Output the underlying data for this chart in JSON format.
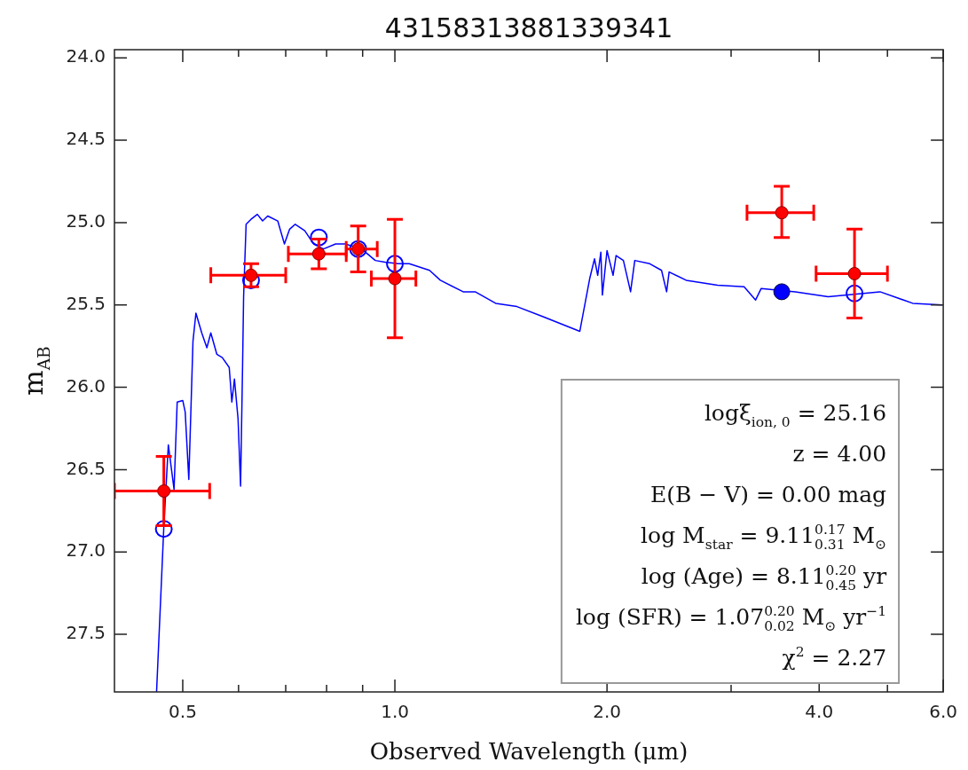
{
  "chart_data": {
    "type": "scatter",
    "title": "43158313881339341",
    "xlabel": "Observed Wavelength (μm)",
    "ylabel": "m$_{AB}$",
    "log": "x",
    "xlim": [
      0.4,
      6.0
    ],
    "ylim": [
      27.85,
      23.95
    ],
    "xticks": [
      {
        "value": 0.5,
        "label": "0.5"
      },
      {
        "value": 0.6,
        "label": null
      },
      {
        "value": 0.7,
        "label": null
      },
      {
        "value": 0.8,
        "label": null
      },
      {
        "value": 0.9,
        "label": null
      },
      {
        "value": 1,
        "label": "1.0"
      },
      {
        "value": 2,
        "label": "2.0"
      },
      {
        "value": 3,
        "label": null
      },
      {
        "value": 4,
        "label": "4.0"
      },
      {
        "value": 5,
        "label": null
      },
      {
        "value": 6,
        "label": "6.0"
      }
    ],
    "yticks": [
      {
        "value": 24,
        "label": "24.0"
      },
      24.5,
      {
        "value": 25,
        "label": "25.0"
      },
      25.5,
      {
        "value": 26,
        "label": "26.0"
      },
      26.5,
      {
        "value": 27,
        "label": "27.0"
      },
      27.5
    ],
    "annotations": [
      "logξ$_{ion, 0}$ = 25.16",
      "z = 4.00",
      "E(B − V) = 0.00 mag",
      "log M$_{star}$ = 9.11$^{0.17}$$_{0.31}$ M$_{⊙}$",
      "log (Age) = 8.11$^{0.20}$$_{0.45}$ yr",
      "log (SFR) = 1.07$^{0.20}$$_{0.02}$ M$_{⊙}$ yr$^{−1}$",
      "χ$^{2}$ = 2.27"
    ],
    "series": [
      {
        "type": "line",
        "color": "#0000ff",
        "marker": "none",
        "line_style": "solid",
        "x": [
          0.459,
          0.47,
          0.477,
          0.486,
          0.491,
          0.5,
          0.504,
          0.51,
          0.517,
          0.522,
          0.532,
          0.541,
          0.548,
          0.559,
          0.569,
          0.582,
          0.587,
          0.592,
          0.599,
          0.604,
          0.608,
          0.61,
          0.615,
          0.625,
          0.638,
          0.649,
          0.66,
          0.682,
          0.697,
          0.709,
          0.722,
          0.745,
          0.767,
          0.792,
          0.824,
          0.85,
          0.897,
          0.938,
          0.968,
          1.011,
          1.048,
          1.12,
          1.16,
          1.25,
          1.3,
          1.39,
          1.49,
          1.62,
          1.83,
          1.89,
          1.92,
          1.94,
          1.96,
          1.97,
          2.0,
          2.04,
          2.06,
          2.11,
          2.16,
          2.19,
          2.3,
          2.39,
          2.43,
          2.45,
          2.59,
          2.87,
          3.13,
          3.25,
          3.31,
          3.7,
          4.12,
          4.88,
          5.43,
          5.98
        ],
        "values": [
          27.85,
          26.85,
          26.35,
          26.62,
          26.09,
          26.08,
          26.15,
          26.56,
          25.72,
          25.55,
          25.67,
          25.76,
          25.67,
          25.8,
          25.82,
          25.88,
          26.09,
          25.95,
          26.19,
          26.6,
          25.86,
          25.45,
          25.01,
          24.98,
          24.95,
          24.99,
          24.96,
          24.99,
          25.13,
          25.04,
          25.01,
          25.05,
          25.13,
          25.16,
          25.13,
          25.13,
          25.16,
          25.23,
          25.24,
          25.25,
          25.25,
          25.29,
          25.35,
          25.42,
          25.42,
          25.49,
          25.51,
          25.57,
          25.66,
          25.34,
          25.22,
          25.32,
          25.18,
          25.44,
          25.17,
          25.32,
          25.2,
          25.23,
          25.42,
          25.23,
          25.25,
          25.29,
          25.42,
          25.3,
          25.35,
          25.38,
          25.39,
          25.47,
          25.4,
          25.42,
          25.45,
          25.42,
          25.49,
          25.5
        ]
      },
      {
        "color": "#0000ff",
        "marker": "circle",
        "x": [
          0.47,
          0.625,
          0.78,
          0.887,
          1.0,
          4.49
        ],
        "values": [
          26.86,
          25.35,
          25.09,
          25.16,
          25.25,
          25.43
        ]
      },
      {
        "color": "#0000ff",
        "marker": "circle",
        "x": [
          3.54
        ],
        "values": [
          25.42
        ]
      },
      {
        "color": "#ff0000",
        "marker": "circle",
        "x": [
          0.47,
          0.625,
          0.78,
          0.887,
          1.0,
          3.54,
          4.49
        ],
        "values": [
          26.63,
          25.32,
          25.19,
          25.16,
          25.34,
          24.94,
          25.31
        ],
        "errors": [
          [
            26.42,
            26.84
          ],
          [
            25.25,
            25.39
          ],
          [
            25.1,
            25.28
          ],
          [
            25.02,
            25.3
          ],
          [
            24.98,
            25.7
          ],
          [
            24.78,
            25.09
          ],
          [
            25.04,
            25.58
          ]
        ],
        "xerrors": [
          [
            0.4,
            0.546
          ],
          [
            0.548,
            0.7
          ],
          [
            0.706,
            0.853
          ],
          [
            0.853,
            0.944
          ],
          [
            0.926,
            1.071
          ],
          [
            3.16,
            3.93
          ],
          [
            3.96,
            5.0
          ]
        ]
      }
    ]
  }
}
